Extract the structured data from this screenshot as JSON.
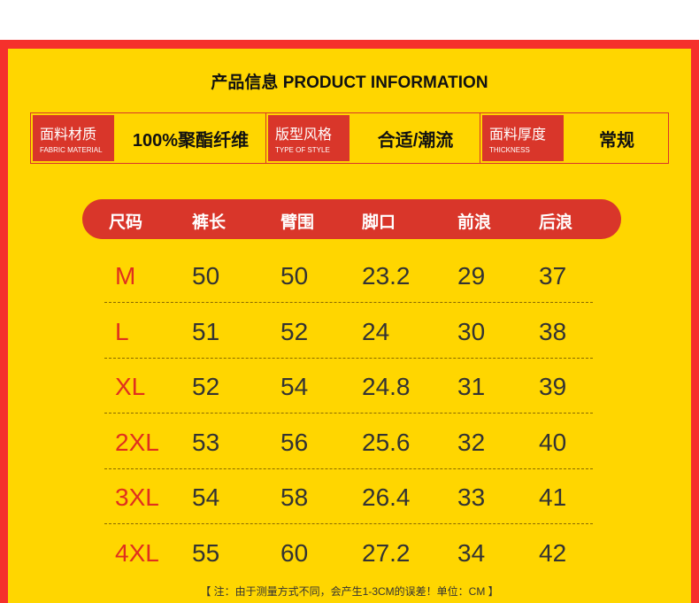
{
  "title": "产品信息 PRODUCT INFORMATION",
  "info": [
    {
      "label": "面料材质",
      "sub": "FABRIC MATERIAL",
      "value": "100%聚酯纤维"
    },
    {
      "label": "版型风格",
      "sub": "TYPE OF STYLE",
      "value": "合适/潮流"
    },
    {
      "label": "面料厚度",
      "sub": "THICKNESS",
      "value": "常规"
    }
  ],
  "headers": [
    "尺码",
    "裤长",
    "臂围",
    "脚口",
    "前浪",
    "后浪"
  ],
  "rows": [
    [
      "M",
      "50",
      "50",
      "23.2",
      "29",
      "37"
    ],
    [
      "L",
      "51",
      "52",
      "24",
      "30",
      "38"
    ],
    [
      "XL",
      "52",
      "54",
      "24.8",
      "31",
      "39"
    ],
    [
      "2XL",
      "53",
      "56",
      "25.6",
      "32",
      "40"
    ],
    [
      "3XL",
      "54",
      "58",
      "26.4",
      "33",
      "41"
    ],
    [
      "4XL",
      "55",
      "60",
      "27.2",
      "34",
      "42"
    ]
  ],
  "note": "【 注：由于测量方式不同，会产生1-3CM的误差！单位：CM 】",
  "colors": {
    "border": "#f5302c",
    "background": "#ffd600",
    "accent": "#d9362a"
  }
}
